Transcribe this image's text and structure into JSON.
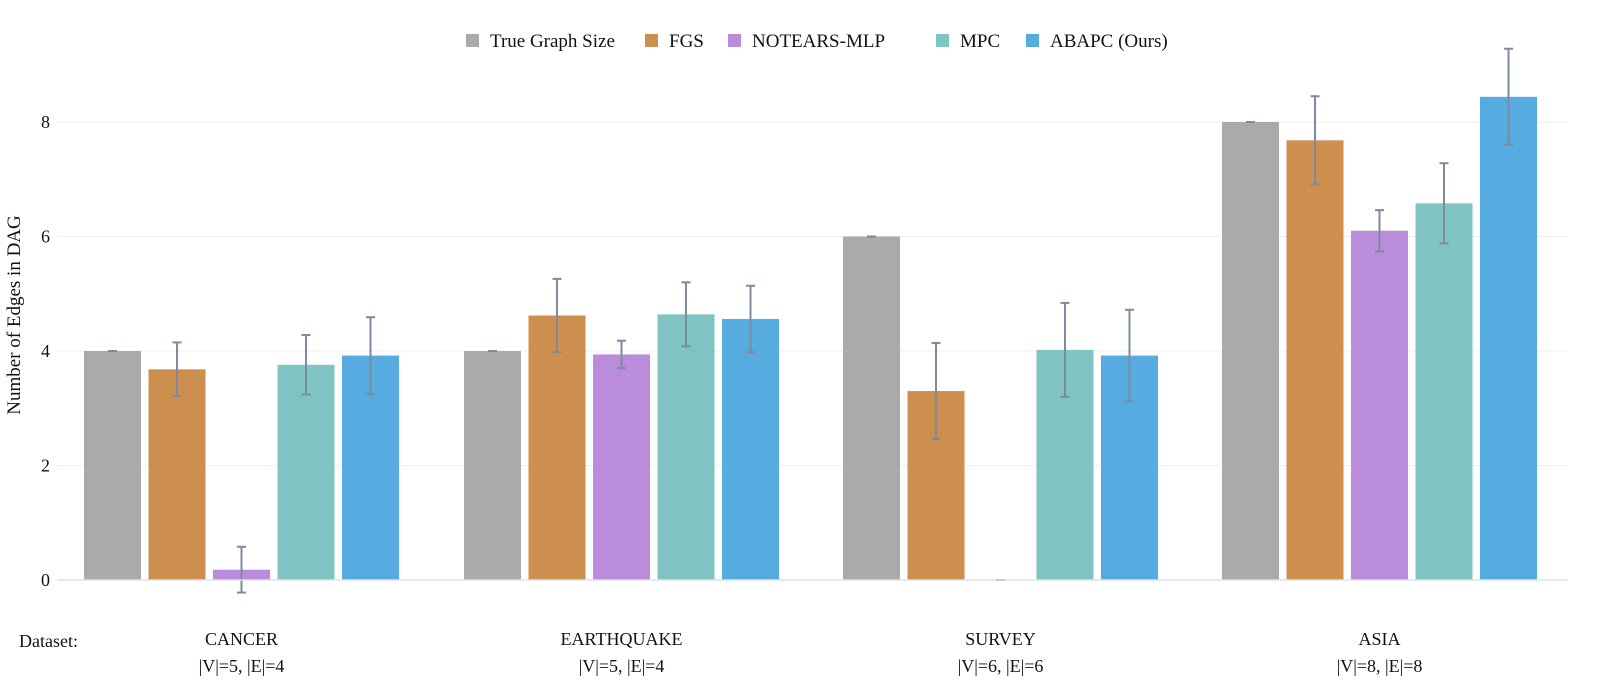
{
  "chart_data": {
    "type": "bar",
    "ylabel": "Number of Edges in DAG",
    "xlabel_prefix": "Dataset:",
    "ylim": [
      0,
      9.3
    ],
    "yticks": [
      0,
      2,
      4,
      6,
      8
    ],
    "grid": true,
    "legend_position": "top-center",
    "categories": [
      "CANCER",
      "EARTHQUAKE",
      "SURVEY",
      "ASIA"
    ],
    "category_sublabels": [
      "|V|=5, |E|=4",
      "|V|=5, |E|=4",
      "|V|=6, |E|=6",
      "|V|=8, |E|=8"
    ],
    "series": [
      {
        "name": "True Graph Size",
        "color": "#aaaaaa",
        "values": [
          4,
          4,
          6,
          8
        ],
        "errors": [
          0,
          0,
          0,
          0
        ]
      },
      {
        "name": "FGS",
        "color": "#cc8f4e",
        "values": [
          3.68,
          4.62,
          3.3,
          7.68
        ],
        "errors": [
          0.47,
          0.64,
          0.84,
          0.77
        ]
      },
      {
        "name": "NOTEARS-MLP",
        "color": "#bb8cdc",
        "values": [
          0.18,
          3.94,
          0,
          6.1
        ],
        "errors": [
          0.4,
          0.24,
          0,
          0.36
        ]
      },
      {
        "name": "MPC",
        "color": "#7fc4c2",
        "values": [
          3.76,
          4.64,
          4.02,
          6.58
        ],
        "errors": [
          0.52,
          0.56,
          0.82,
          0.7
        ]
      },
      {
        "name": "ABAPC (Ours)",
        "color": "#56ace0",
        "values": [
          3.92,
          4.56,
          3.92,
          8.44
        ],
        "errors": [
          0.67,
          0.58,
          0.8,
          0.84
        ]
      }
    ]
  }
}
